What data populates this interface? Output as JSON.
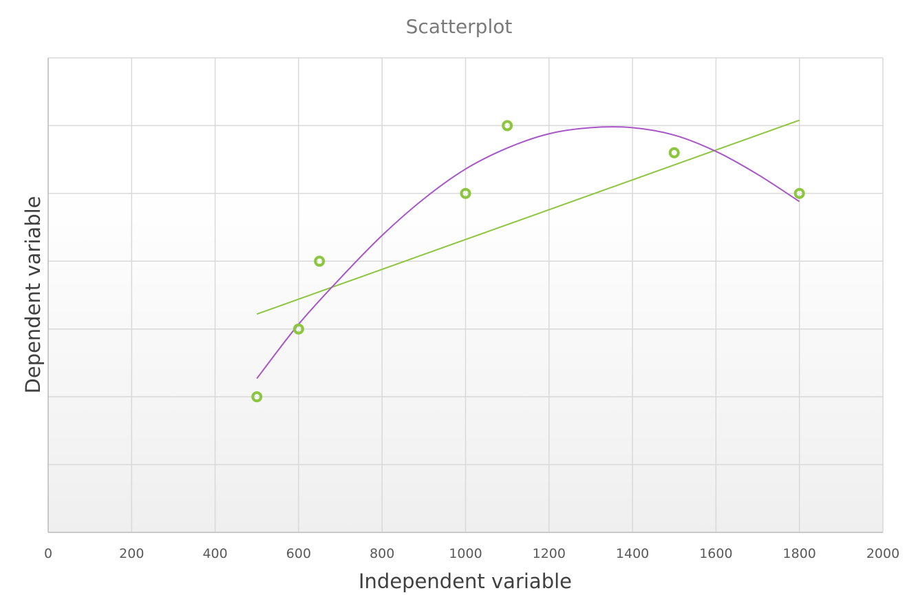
{
  "chart_data": {
    "type": "scatter",
    "title": "Scatterplot",
    "xlabel": "Independent variable",
    "ylabel": "Dependent variable",
    "xlim": [
      0,
      2000
    ],
    "ylim": [
      0,
      7
    ],
    "x_ticks": [
      "0",
      "200",
      "400",
      "600",
      "800",
      "1000",
      "1200",
      "1400",
      "1600",
      "1800",
      "2000"
    ],
    "y_ticks_labeled": false,
    "grid": true,
    "legend": "none",
    "points": [
      {
        "x": 500,
        "y": 2
      },
      {
        "x": 600,
        "y": 3
      },
      {
        "x": 650,
        "y": 4
      },
      {
        "x": 1000,
        "y": 5
      },
      {
        "x": 1100,
        "y": 6
      },
      {
        "x": 1500,
        "y": 5.6
      },
      {
        "x": 1800,
        "y": 5
      }
    ],
    "trendlines": [
      {
        "kind": "linear",
        "x_range": [
          500,
          1800
        ],
        "y_start": 3.22,
        "y_end": 6.08,
        "color": "#8cc63f"
      },
      {
        "kind": "quadratic",
        "x_range": [
          500,
          1800
        ],
        "curve": [
          [
            500,
            2.27
          ],
          [
            600,
            3.07
          ],
          [
            700,
            3.75
          ],
          [
            800,
            4.38
          ],
          [
            900,
            4.92
          ],
          [
            1000,
            5.36
          ],
          [
            1100,
            5.67
          ],
          [
            1200,
            5.88
          ],
          [
            1300,
            5.97
          ],
          [
            1400,
            5.97
          ],
          [
            1500,
            5.86
          ],
          [
            1600,
            5.62
          ],
          [
            1700,
            5.28
          ],
          [
            1800,
            4.88
          ]
        ],
        "color": "#a855c8"
      }
    ],
    "point_color": "#8cc63f"
  }
}
